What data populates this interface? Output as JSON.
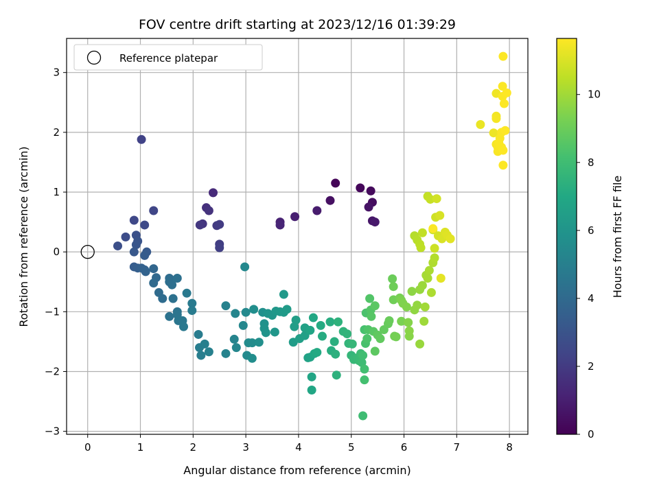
{
  "chart_data": {
    "type": "scatter",
    "title": "FOV centre drift starting at 2023/12/16 01:39:29",
    "xlabel": "Angular distance from reference (arcmin)",
    "ylabel": "Rotation from reference (arcmin)",
    "xlim": [
      -0.4,
      8.35
    ],
    "ylim": [
      -3.05,
      3.57
    ],
    "xticks": [
      0,
      1,
      2,
      3,
      4,
      5,
      6,
      7,
      8
    ],
    "yticks": [
      -3,
      -2,
      -1,
      0,
      1,
      2,
      3
    ],
    "grid": true,
    "legend": {
      "placement": "top-left",
      "entries": [
        "Reference platepar"
      ]
    },
    "reference_point": {
      "x": 0,
      "y": 0,
      "label": "Reference platepar"
    },
    "colorbar": {
      "label": "Hours from first FF file",
      "colormap": "viridis",
      "range": [
        0,
        11.65
      ],
      "ticks": [
        0,
        2,
        4,
        6,
        8,
        10
      ]
    },
    "points": [
      [
        4.7,
        1.15,
        0.1
      ],
      [
        5.17,
        1.07,
        0.2
      ],
      [
        5.37,
        1.02,
        0.3
      ],
      [
        5.4,
        0.83,
        0.4
      ],
      [
        4.6,
        0.86,
        0.5
      ],
      [
        5.33,
        0.75,
        0.6
      ],
      [
        5.4,
        0.52,
        0.7
      ],
      [
        5.45,
        0.5,
        0.8
      ],
      [
        4.35,
        0.69,
        0.9
      ],
      [
        3.93,
        0.59,
        1.0
      ],
      [
        3.65,
        0.5,
        1.1
      ],
      [
        3.65,
        0.45,
        1.2
      ],
      [
        2.38,
        0.99,
        1.4
      ],
      [
        2.25,
        0.74,
        1.6
      ],
      [
        2.3,
        0.69,
        1.7
      ],
      [
        2.18,
        0.47,
        1.8
      ],
      [
        2.13,
        0.45,
        1.9
      ],
      [
        2.45,
        0.44,
        2.0
      ],
      [
        2.5,
        0.46,
        2.05
      ],
      [
        2.5,
        0.13,
        2.1
      ],
      [
        2.5,
        0.07,
        2.2
      ],
      [
        1.02,
        1.88,
        2.3
      ],
      [
        1.25,
        0.69,
        2.4
      ],
      [
        0.88,
        0.53,
        2.5
      ],
      [
        1.08,
        0.45,
        2.6
      ],
      [
        0.72,
        0.25,
        2.7
      ],
      [
        0.57,
        0.1,
        2.8
      ],
      [
        0.92,
        0.28,
        2.9
      ],
      [
        0.95,
        0.18,
        3.0
      ],
      [
        0.92,
        0.12,
        3.1
      ],
      [
        0.88,
        0.0,
        3.2
      ],
      [
        1.12,
        0.0,
        3.3
      ],
      [
        1.08,
        -0.06,
        3.35
      ],
      [
        0.88,
        -0.25,
        3.4
      ],
      [
        0.95,
        -0.27,
        3.5
      ],
      [
        1.02,
        -0.27,
        3.6
      ],
      [
        1.08,
        -0.3,
        3.65
      ],
      [
        1.1,
        -0.33,
        3.7
      ],
      [
        1.25,
        -0.28,
        3.8
      ],
      [
        1.3,
        -0.43,
        3.9
      ],
      [
        1.25,
        -0.52,
        4.0
      ],
      [
        1.35,
        -0.68,
        4.05
      ],
      [
        1.42,
        -0.78,
        4.1
      ],
      [
        1.55,
        -0.44,
        4.15
      ],
      [
        1.55,
        -0.5,
        4.2
      ],
      [
        1.6,
        -0.55,
        4.25
      ],
      [
        1.7,
        -0.44,
        4.3
      ],
      [
        1.62,
        -0.78,
        4.35
      ],
      [
        1.55,
        -1.08,
        4.4
      ],
      [
        1.7,
        -1.0,
        4.45
      ],
      [
        1.7,
        -1.05,
        4.5
      ],
      [
        1.72,
        -1.15,
        4.55
      ],
      [
        1.8,
        -1.15,
        4.6
      ],
      [
        1.82,
        -1.25,
        4.65
      ],
      [
        1.88,
        -0.69,
        4.7
      ],
      [
        1.98,
        -0.86,
        4.75
      ],
      [
        1.98,
        -0.98,
        4.8
      ],
      [
        2.1,
        -1.38,
        4.85
      ],
      [
        2.12,
        -1.6,
        4.9
      ],
      [
        2.15,
        -1.73,
        4.95
      ],
      [
        2.22,
        -1.54,
        5.0
      ],
      [
        2.3,
        -1.67,
        5.05
      ],
      [
        2.62,
        -0.9,
        5.1
      ],
      [
        2.62,
        -1.7,
        5.15
      ],
      [
        2.78,
        -1.46,
        5.2
      ],
      [
        2.8,
        -1.03,
        5.25
      ],
      [
        2.82,
        -1.6,
        5.3
      ],
      [
        2.95,
        -1.23,
        5.35
      ],
      [
        2.98,
        -0.25,
        5.4
      ],
      [
        3.0,
        -1.01,
        5.45
      ],
      [
        3.02,
        -1.73,
        5.5
      ],
      [
        3.05,
        -1.52,
        5.55
      ],
      [
        3.12,
        -1.52,
        5.6
      ],
      [
        3.12,
        -1.78,
        5.65
      ],
      [
        3.15,
        -0.96,
        5.7
      ],
      [
        3.25,
        -1.51,
        5.75
      ],
      [
        3.32,
        -1.01,
        5.8
      ],
      [
        3.35,
        -1.2,
        5.85
      ],
      [
        3.35,
        -1.28,
        5.9
      ],
      [
        3.38,
        -1.35,
        5.95
      ],
      [
        3.42,
        -1.03,
        6.0
      ],
      [
        3.5,
        -1.06,
        6.05
      ],
      [
        3.55,
        -1.34,
        6.1
      ],
      [
        3.57,
        -0.99,
        6.15
      ],
      [
        3.65,
        -1.0,
        6.2
      ],
      [
        3.72,
        -0.71,
        6.25
      ],
      [
        3.72,
        -1.01,
        6.3
      ],
      [
        3.78,
        -0.96,
        6.35
      ],
      [
        3.9,
        -1.51,
        6.4
      ],
      [
        3.92,
        -1.25,
        6.45
      ],
      [
        3.95,
        -1.14,
        6.5
      ],
      [
        4.02,
        -1.45,
        6.55
      ],
      [
        4.12,
        -1.4,
        6.6
      ],
      [
        4.12,
        -1.27,
        6.65
      ],
      [
        4.18,
        -1.77,
        6.7
      ],
      [
        4.22,
        -1.76,
        6.75
      ],
      [
        4.22,
        -1.31,
        6.8
      ],
      [
        4.25,
        -2.09,
        6.85
      ],
      [
        4.25,
        -2.31,
        6.9
      ],
      [
        4.28,
        -1.1,
        6.95
      ],
      [
        4.3,
        -1.7,
        7.0
      ],
      [
        4.35,
        -1.68,
        7.05
      ],
      [
        4.42,
        -1.23,
        7.1
      ],
      [
        4.45,
        -1.41,
        7.15
      ],
      [
        4.6,
        -1.17,
        7.2
      ],
      [
        4.62,
        -1.65,
        7.25
      ],
      [
        4.68,
        -1.5,
        7.3
      ],
      [
        4.7,
        -1.71,
        7.35
      ],
      [
        4.72,
        -2.06,
        7.4
      ],
      [
        4.75,
        -1.17,
        7.45
      ],
      [
        4.85,
        -1.33,
        7.5
      ],
      [
        4.92,
        -1.37,
        7.55
      ],
      [
        4.95,
        -1.53,
        7.6
      ],
      [
        5.0,
        -1.73,
        7.65
      ],
      [
        5.02,
        -1.54,
        7.7
      ],
      [
        5.05,
        -1.8,
        7.75
      ],
      [
        5.12,
        -1.77,
        7.8
      ],
      [
        5.15,
        -1.82,
        7.85
      ],
      [
        5.18,
        -1.7,
        7.9
      ],
      [
        5.2,
        -1.85,
        7.95
      ],
      [
        5.22,
        -2.74,
        8.0
      ],
      [
        5.22,
        -1.73,
        8.05
      ],
      [
        5.25,
        -1.96,
        8.1
      ],
      [
        5.25,
        -2.14,
        8.15
      ],
      [
        5.25,
        -1.3,
        8.2
      ],
      [
        5.27,
        -1.53,
        8.25
      ],
      [
        5.28,
        -1.02,
        8.3
      ],
      [
        5.3,
        -1.45,
        8.35
      ],
      [
        5.32,
        -1.3,
        8.4
      ],
      [
        5.35,
        -0.78,
        8.45
      ],
      [
        5.37,
        -0.97,
        8.5
      ],
      [
        5.38,
        -1.08,
        8.55
      ],
      [
        5.42,
        -1.33,
        8.6
      ],
      [
        5.45,
        -0.9,
        8.65
      ],
      [
        5.45,
        -1.66,
        8.7
      ],
      [
        5.5,
        -1.39,
        8.75
      ],
      [
        5.55,
        -1.45,
        8.8
      ],
      [
        5.62,
        -1.3,
        8.85
      ],
      [
        5.7,
        -1.2,
        8.9
      ],
      [
        5.72,
        -1.15,
        8.95
      ],
      [
        5.78,
        -0.45,
        9.0
      ],
      [
        5.8,
        -0.58,
        9.05
      ],
      [
        5.8,
        -0.8,
        9.1
      ],
      [
        5.82,
        -1.41,
        9.15
      ],
      [
        5.85,
        -1.42,
        9.2
      ],
      [
        5.92,
        -0.77,
        9.25
      ],
      [
        5.95,
        -1.16,
        9.3
      ],
      [
        5.95,
        -0.81,
        9.35
      ],
      [
        5.98,
        -0.86,
        9.4
      ],
      [
        6.05,
        -0.92,
        9.45
      ],
      [
        6.08,
        -1.18,
        9.5
      ],
      [
        6.1,
        -1.41,
        9.55
      ],
      [
        6.1,
        -1.32,
        9.6
      ],
      [
        6.15,
        -0.66,
        9.65
      ],
      [
        6.2,
        -0.97,
        9.7
      ],
      [
        6.25,
        -0.89,
        9.75
      ],
      [
        6.3,
        -0.63,
        9.8
      ],
      [
        6.3,
        -1.54,
        9.85
      ],
      [
        6.35,
        -0.56,
        9.9
      ],
      [
        6.38,
        -1.16,
        9.95
      ],
      [
        6.4,
        -0.92,
        10.0
      ],
      [
        6.42,
        -0.39,
        10.05
      ],
      [
        6.45,
        -0.44,
        10.1
      ],
      [
        6.48,
        -0.31,
        10.15
      ],
      [
        6.52,
        -0.68,
        10.2
      ],
      [
        6.55,
        -0.18,
        10.25
      ],
      [
        6.58,
        -0.1,
        10.3
      ],
      [
        6.2,
        0.27,
        10.35
      ],
      [
        6.25,
        0.2,
        10.4
      ],
      [
        6.3,
        0.13,
        10.45
      ],
      [
        6.32,
        0.07,
        10.5
      ],
      [
        6.35,
        0.32,
        10.55
      ],
      [
        6.45,
        0.93,
        10.6
      ],
      [
        6.5,
        0.88,
        10.65
      ],
      [
        6.55,
        0.37,
        10.7
      ],
      [
        6.58,
        0.06,
        10.75
      ],
      [
        6.6,
        0.58,
        10.8
      ],
      [
        6.62,
        0.89,
        10.85
      ],
      [
        6.65,
        0.27,
        10.9
      ],
      [
        6.68,
        0.61,
        10.95
      ],
      [
        6.72,
        0.22,
        11.0
      ],
      [
        6.78,
        0.33,
        11.05
      ],
      [
        6.82,
        0.28,
        11.1
      ],
      [
        6.88,
        0.22,
        11.15
      ],
      [
        6.7,
        -0.44,
        11.2
      ],
      [
        6.55,
        0.39,
        11.6
      ],
      [
        7.45,
        2.13,
        11.3
      ],
      [
        7.7,
        1.99,
        11.35
      ],
      [
        7.75,
        2.65,
        11.4
      ],
      [
        7.75,
        2.27,
        11.45
      ],
      [
        7.75,
        2.23,
        11.5
      ],
      [
        7.75,
        1.8,
        11.52
      ],
      [
        7.78,
        1.68,
        11.55
      ],
      [
        7.78,
        1.75,
        11.57
      ],
      [
        7.82,
        1.9,
        11.58
      ],
      [
        7.85,
        2.0,
        11.59
      ],
      [
        7.85,
        1.75,
        11.6
      ],
      [
        7.87,
        2.77,
        11.61
      ],
      [
        7.87,
        2.6,
        11.62
      ],
      [
        7.88,
        1.45,
        11.63
      ],
      [
        7.88,
        1.7,
        11.63
      ],
      [
        7.88,
        3.27,
        11.64
      ],
      [
        7.9,
        2.48,
        11.64
      ],
      [
        7.92,
        2.03,
        11.65
      ],
      [
        7.95,
        2.66,
        11.65
      ],
      [
        7.8,
        1.82,
        11.6
      ]
    ]
  }
}
